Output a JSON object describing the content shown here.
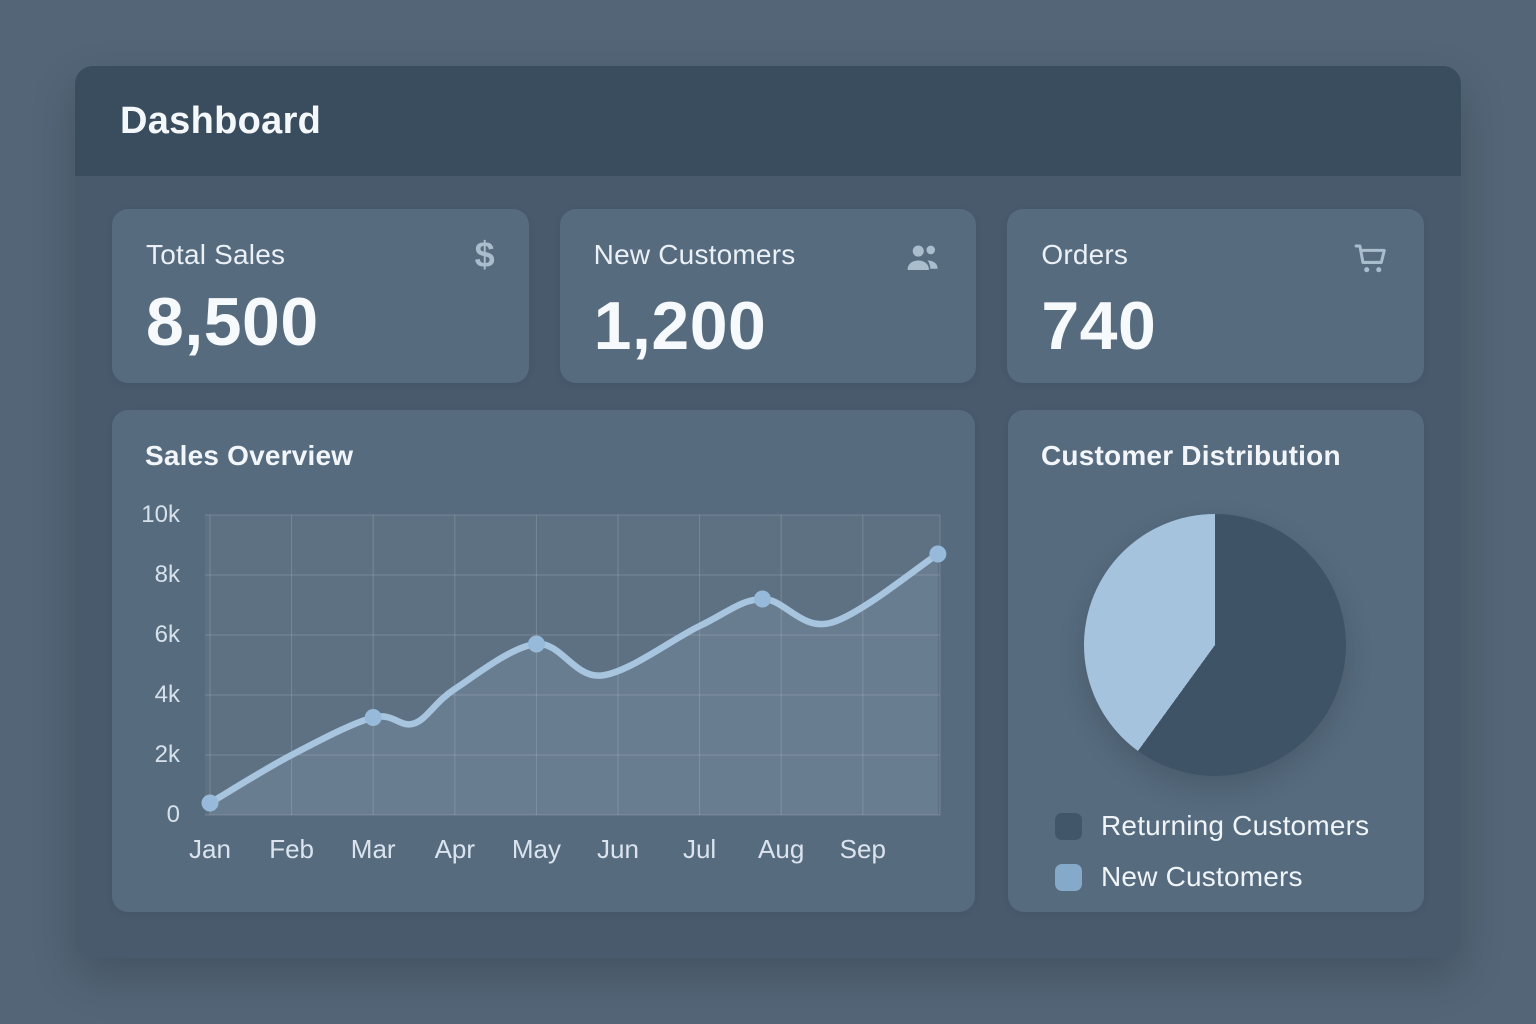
{
  "header": {
    "title": "Dashboard"
  },
  "stats": [
    {
      "label": "Total Sales",
      "value": "8,500",
      "icon": "dollar-icon",
      "icon_glyph": "$"
    },
    {
      "label": "New Customers",
      "value": "1,200",
      "icon": "users-icon"
    },
    {
      "label": "Orders",
      "value": "740",
      "icon": "cart-icon"
    }
  ],
  "chart_data": [
    {
      "type": "line",
      "title": "Sales Overview",
      "categories": [
        "Jan",
        "Feb",
        "Mar",
        "Apr",
        "May",
        "Jun",
        "Jul",
        "Aug",
        "Sep"
      ],
      "values": [
        400,
        2000,
        3250,
        4200,
        5700,
        4800,
        6300,
        7200,
        8700
      ],
      "curve_points": [
        {
          "x": 0,
          "v": 400
        },
        {
          "x": 1,
          "v": 2000
        },
        {
          "x": 2,
          "v": 3250
        },
        {
          "x": 2.5,
          "v": 3050
        },
        {
          "x": 3,
          "v": 4200
        },
        {
          "x": 4,
          "v": 5700
        },
        {
          "x": 4.8,
          "v": 4650
        },
        {
          "x": 6,
          "v": 6300
        },
        {
          "x": 6.77,
          "v": 7200
        },
        {
          "x": 7.6,
          "v": 6400
        },
        {
          "x": 8.92,
          "v": 8700
        }
      ],
      "markers": [
        {
          "x": 0,
          "v": 400
        },
        {
          "x": 2,
          "v": 3250
        },
        {
          "x": 4,
          "v": 5700
        },
        {
          "x": 6.77,
          "v": 7200
        },
        {
          "x": 8.92,
          "v": 8700
        }
      ],
      "y_ticks": [
        {
          "label": "10k",
          "value": 10000
        },
        {
          "label": "8k",
          "value": 8000
        },
        {
          "label": "6k",
          "value": 6000
        },
        {
          "label": "4k",
          "value": 4000
        },
        {
          "label": "2k",
          "value": 2000
        },
        {
          "label": "0",
          "value": 0
        }
      ],
      "ylim": [
        0,
        10000
      ],
      "grid": true,
      "line_color": "#a8c5e0",
      "marker_color": "#97b9da",
      "area_fill_color": "#bcd3e8",
      "area_fill_opacity": 0.13,
      "grid_color": "rgba(255,255,255,0.16)"
    },
    {
      "type": "pie",
      "title": "Customer Distribution",
      "slices": [
        {
          "label": "Returning Customers",
          "percent": 60,
          "color": "#3e5365",
          "legend_color": "#42566a"
        },
        {
          "label": "New Customers",
          "percent": 40,
          "color": "#a6c3de",
          "legend_color": "#85a9c9"
        }
      ],
      "legend_position": "bottom-left",
      "start_angle_deg": 0
    }
  ]
}
